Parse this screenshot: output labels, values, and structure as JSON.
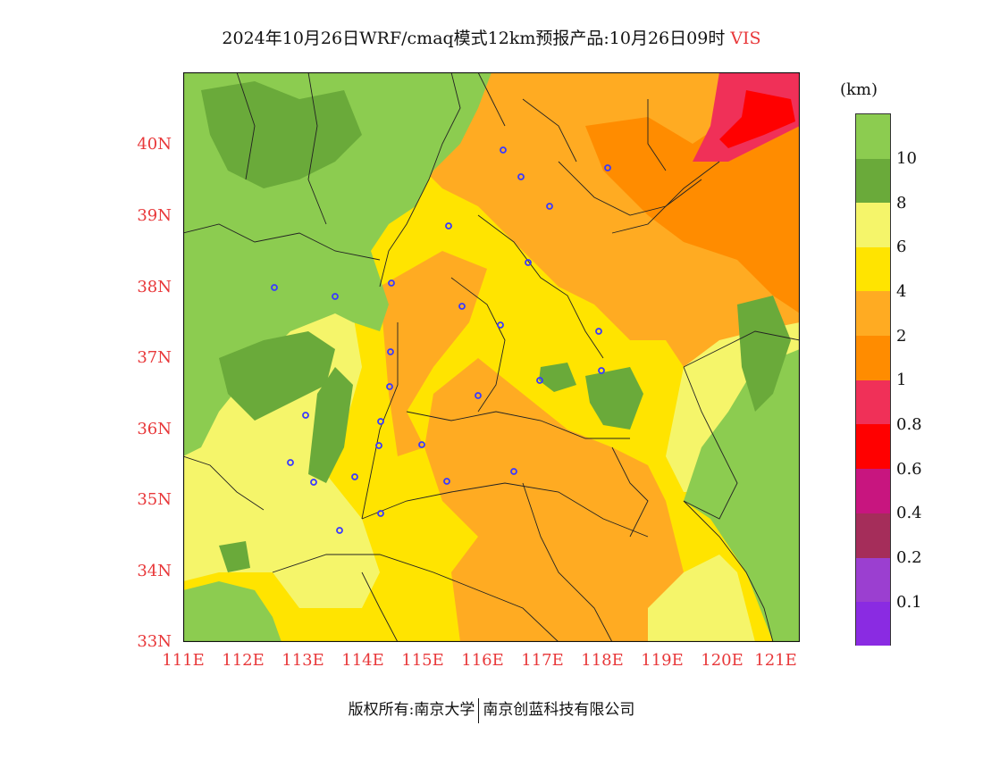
{
  "title": {
    "main": "2024年10月26日WRF/cmaq模式12km预报产品:10月26日09时",
    "variable": "VIS"
  },
  "legend": {
    "unit": "(km)",
    "colors": [
      "#8a2be2",
      "#9b3fd0",
      "#a52d5a",
      "#c8157f",
      "#ff0000",
      "#f03058",
      "#ff8c00",
      "#ffab22",
      "#ffe400",
      "#f5f56a",
      "#6aaa3a",
      "#8ccc50"
    ],
    "labels": [
      "0.1",
      "0.2",
      "0.4",
      "0.6",
      "0.8",
      "1",
      "2",
      "4",
      "6",
      "8",
      "10"
    ]
  },
  "axes": {
    "lat_labels": [
      "40N",
      "39N",
      "38N",
      "37N",
      "36N",
      "35N",
      "34N",
      "33N"
    ],
    "lon_labels": [
      "111E",
      "112E",
      "113E",
      "114E",
      "115E",
      "116E",
      "117E",
      "118E",
      "119E",
      "120E",
      "121E"
    ]
  },
  "map": {
    "lat_range": [
      33,
      41
    ],
    "lon_range": [
      111,
      121.3
    ],
    "field_colors": {
      "gt10": "#8ccc50",
      "8to10": "#6aaa3a",
      "6to8": "#f5f56a",
      "4to6": "#ffe400",
      "2to4": "#ffab22",
      "1to2": "#ff8c00",
      "0.8to1": "#f03058",
      "0.6to0.8": "#ff0000"
    },
    "station_marker_color": "#3a3aff"
  },
  "footer": {
    "copyright": "版权所有:南京大学",
    "company": "南京创蓝科技有限公司"
  }
}
